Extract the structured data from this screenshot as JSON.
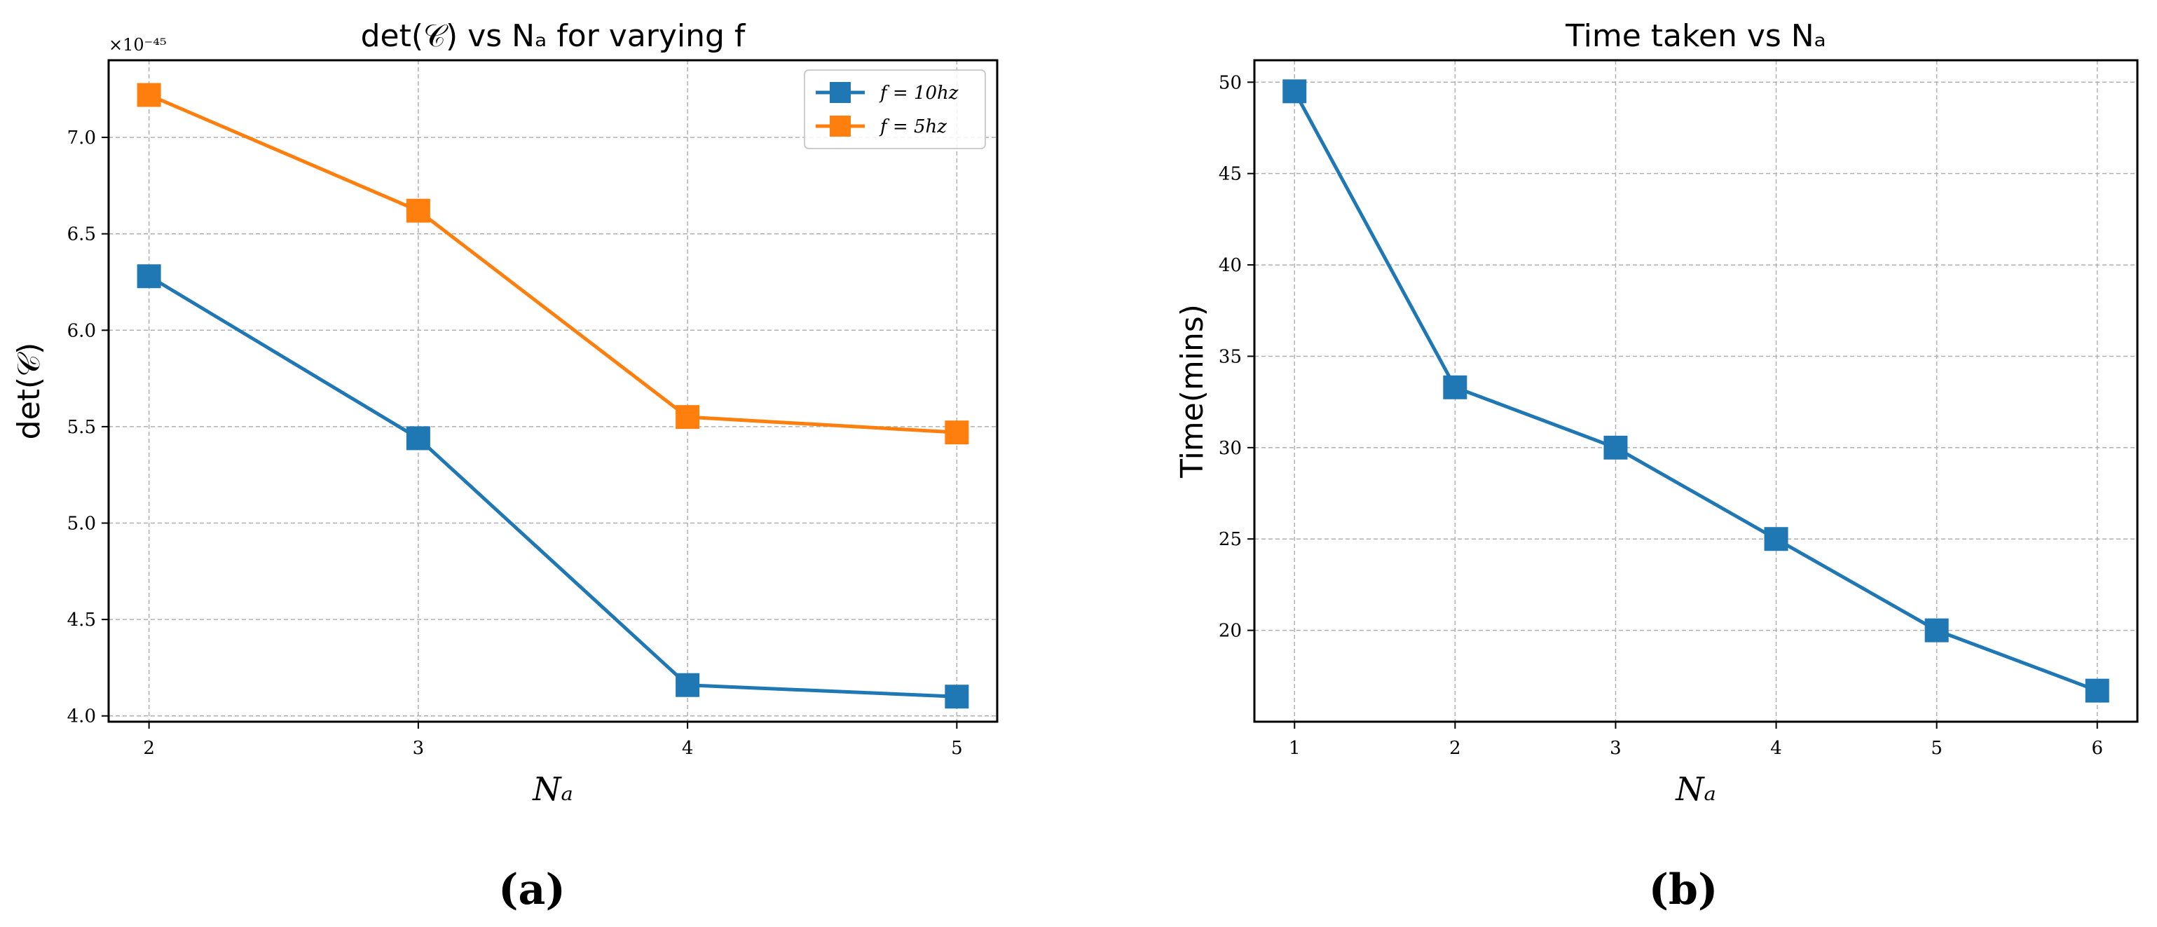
{
  "colors": {
    "blue": "#1f77b4",
    "orange": "#ff7f0e"
  },
  "chart_data": [
    {
      "type": "line",
      "title": "det(𝒞) vs Nₐ for varying f",
      "xlabel": "Nₐ",
      "ylabel": "det(𝒞)",
      "y_offset_label": "×10⁻⁴⁵",
      "x": [
        2,
        3,
        4,
        5
      ],
      "xticks": [
        "2",
        "3",
        "4",
        "5"
      ],
      "xlim": [
        1.85,
        5.15
      ],
      "yticks": [
        "4.0",
        "4.5",
        "5.0",
        "5.5",
        "6.0",
        "6.5",
        "7.0"
      ],
      "ytick_values": [
        4.0,
        4.5,
        5.0,
        5.5,
        6.0,
        6.5,
        7.0
      ],
      "ylim": [
        3.97,
        7.4
      ],
      "grid": true,
      "legend_position": "top-right",
      "series": [
        {
          "name": "f = 10hz",
          "color": "#1f77b4",
          "values": [
            6.28,
            5.44,
            4.16,
            4.1
          ]
        },
        {
          "name": "f = 5hz",
          "color": "#ff7f0e",
          "values": [
            7.22,
            6.62,
            5.55,
            5.47
          ]
        }
      ],
      "panel_label": "(a)"
    },
    {
      "type": "line",
      "title": "Time taken vs Nₐ",
      "xlabel": "Nₐ",
      "ylabel": "Time(mins)",
      "x": [
        1,
        2,
        3,
        4,
        5,
        6
      ],
      "xticks": [
        "1",
        "2",
        "3",
        "4",
        "5",
        "6"
      ],
      "xlim": [
        0.75,
        6.25
      ],
      "yticks": [
        "20",
        "25",
        "30",
        "35",
        "40",
        "45",
        "50"
      ],
      "ytick_values": [
        20,
        25,
        30,
        35,
        40,
        45,
        50
      ],
      "ylim": [
        15.0,
        51.2
      ],
      "grid": true,
      "series": [
        {
          "name": "Time",
          "color": "#1f77b4",
          "values": [
            49.5,
            33.3,
            30.0,
            25.0,
            20.0,
            16.7
          ]
        }
      ],
      "panel_label": "(b)"
    }
  ]
}
